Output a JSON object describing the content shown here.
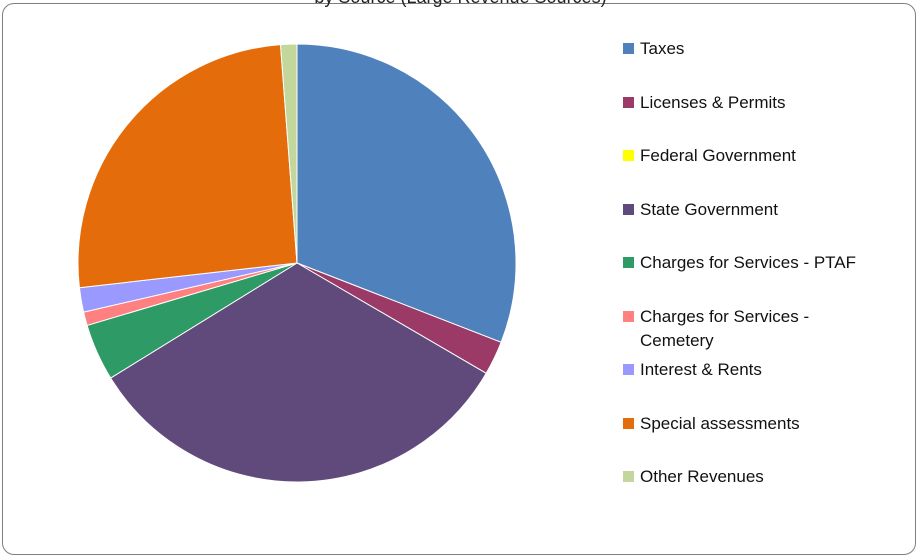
{
  "chart_data": {
    "type": "pie",
    "title": "by Source (Large Revenue Sources)",
    "legend_position": "right",
    "slices": [
      {
        "label": "Taxes",
        "value": 30.9,
        "color": "#4F81BD"
      },
      {
        "label": "Licenses & Permits",
        "value": 2.5,
        "color": "#9B3A66"
      },
      {
        "label": "Federal Government",
        "value": 0.0,
        "color": "#FFFF00"
      },
      {
        "label": "State Government",
        "value": 32.8,
        "color": "#604A7B"
      },
      {
        "label": "Charges for Services - PTAF",
        "value": 4.2,
        "color": "#2E9A66"
      },
      {
        "label": "Charges for Services - Cemetery",
        "value": 1.0,
        "color": "#FF8080"
      },
      {
        "label": "Interest & Rents",
        "value": 1.8,
        "color": "#9999FF"
      },
      {
        "label": "Special assessments",
        "value": 25.6,
        "color": "#E46C0A"
      },
      {
        "label": "Other Revenues",
        "value": 1.2,
        "color": "#C3D69B"
      }
    ]
  }
}
